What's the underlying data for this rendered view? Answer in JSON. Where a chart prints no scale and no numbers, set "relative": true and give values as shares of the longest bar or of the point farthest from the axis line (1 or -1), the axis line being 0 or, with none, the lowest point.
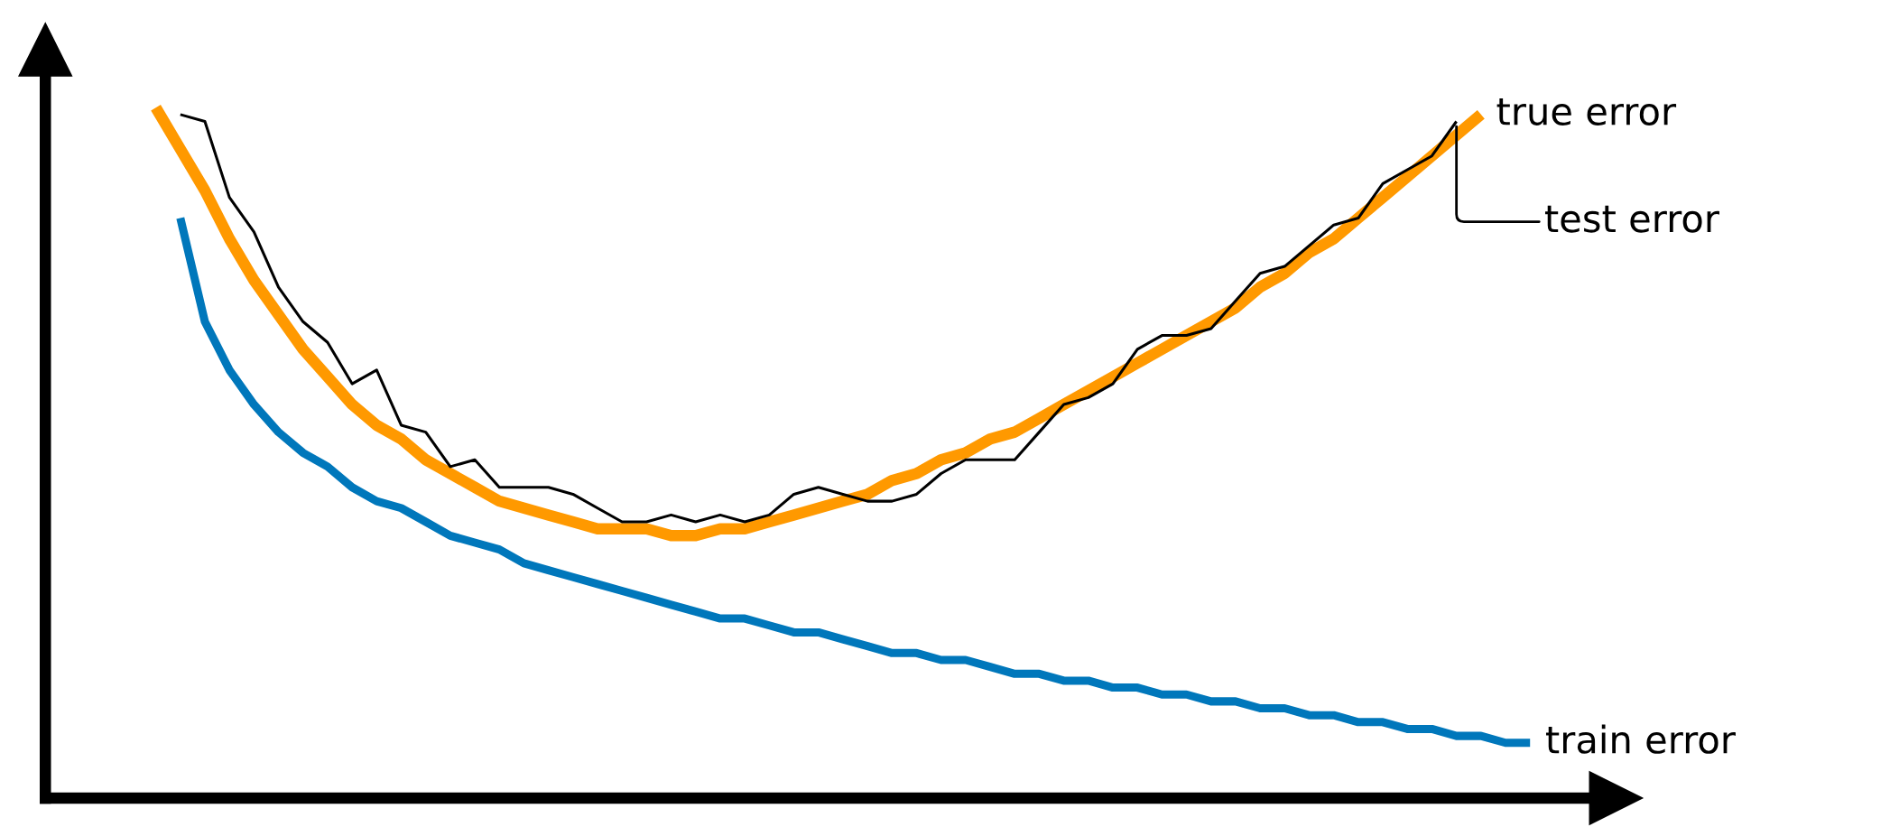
{
  "chart_data": {
    "type": "line",
    "relative": true,
    "categories": [
      null,
      null,
      null,
      null,
      null,
      null,
      null,
      null,
      null,
      null,
      null,
      null,
      null,
      null,
      null,
      null,
      null,
      null,
      null,
      null,
      null,
      null,
      null,
      null,
      null,
      null,
      null,
      null,
      null,
      null,
      null,
      null,
      null,
      null,
      null,
      null,
      null,
      null,
      null,
      null,
      null,
      null,
      null,
      null,
      null,
      null,
      null,
      null,
      null,
      null,
      null,
      null,
      null,
      null,
      null,
      null,
      null,
      null,
      null,
      null,
      null,
      null,
      null,
      null
    ],
    "series": [
      {
        "name": "true error",
        "color": "#ff9900",
        "values": [
          null,
          null,
          null,
          null,
          1.0,
          0.94,
          0.88,
          0.81,
          0.75,
          0.7,
          0.65,
          0.61,
          0.57,
          0.54,
          0.52,
          0.49,
          0.47,
          0.45,
          0.43,
          0.42,
          0.41,
          0.4,
          0.39,
          0.39,
          0.39,
          0.38,
          0.38,
          0.39,
          0.39,
          0.4,
          0.41,
          0.42,
          0.43,
          0.44,
          0.46,
          0.47,
          0.49,
          0.5,
          0.52,
          0.53,
          0.55,
          0.57,
          0.59,
          0.61,
          0.63,
          0.65,
          0.67,
          0.69,
          0.71,
          0.74,
          0.76,
          0.79,
          0.81,
          0.84,
          0.87,
          0.9,
          0.93,
          0.96,
          0.99,
          null,
          null,
          null,
          null,
          null
        ]
      },
      {
        "name": "test error",
        "color": "#000000",
        "values": [
          null,
          null,
          null,
          null,
          null,
          0.99,
          0.98,
          0.87,
          0.82,
          0.74,
          0.69,
          0.66,
          0.6,
          0.62,
          0.54,
          0.53,
          0.48,
          0.49,
          0.45,
          0.45,
          0.45,
          0.44,
          0.42,
          0.4,
          0.4,
          0.41,
          0.4,
          0.41,
          0.4,
          0.41,
          0.44,
          0.45,
          0.44,
          0.43,
          0.43,
          0.44,
          0.47,
          0.49,
          0.49,
          0.49,
          0.53,
          0.57,
          0.58,
          0.6,
          0.65,
          0.67,
          0.67,
          0.68,
          0.72,
          0.76,
          0.77,
          0.8,
          0.83,
          0.84,
          0.89,
          0.91,
          0.93,
          0.98,
          null,
          null,
          null,
          null,
          null,
          null
        ]
      },
      {
        "name": "train error",
        "color": "#0077bb",
        "values": [
          null,
          null,
          null,
          null,
          null,
          0.84,
          0.69,
          0.62,
          0.57,
          0.53,
          0.5,
          0.48,
          0.45,
          0.43,
          0.42,
          0.4,
          0.38,
          0.37,
          0.36,
          0.34,
          0.33,
          0.32,
          0.31,
          0.3,
          0.29,
          0.28,
          0.27,
          0.26,
          0.26,
          0.25,
          0.24,
          0.24,
          0.23,
          0.22,
          0.21,
          0.21,
          0.2,
          0.2,
          0.19,
          0.18,
          0.18,
          0.17,
          0.17,
          0.16,
          0.16,
          0.15,
          0.15,
          0.14,
          0.14,
          0.13,
          0.13,
          0.12,
          0.12,
          0.11,
          0.11,
          0.1,
          0.1,
          0.09,
          0.09,
          0.08,
          0.08,
          null,
          null,
          null
        ]
      }
    ]
  }
}
